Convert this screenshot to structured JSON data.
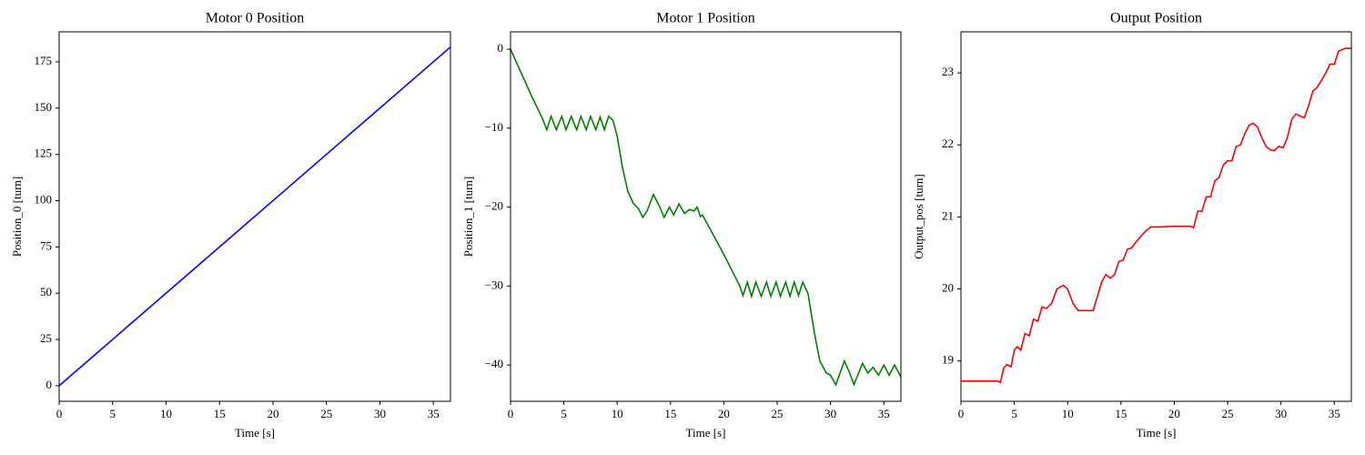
{
  "chart_data": [
    {
      "type": "line",
      "title": "Motor 0 Position",
      "x_label": "Time [s]",
      "y_label": "Position_0 [turn]",
      "color": "#0000ff",
      "x": [
        0,
        36.6
      ],
      "values": [
        0,
        183
      ],
      "xlim": [
        0,
        36.6
      ],
      "ylim": [
        -8.4,
        191.2
      ],
      "xticks": [
        0,
        5,
        10,
        15,
        20,
        25,
        30,
        35
      ],
      "yticks": [
        0,
        25,
        50,
        75,
        100,
        125,
        150,
        175
      ]
    },
    {
      "type": "line",
      "title": "Motor 1 Position",
      "x_label": "Time [s]",
      "y_label": "Position_1 [turn]",
      "color": "#008000",
      "x": [
        0,
        1,
        2,
        3,
        3.4,
        3.8,
        4.3,
        4.8,
        5.2,
        5.7,
        6.2,
        6.6,
        7.1,
        7.5,
        8.0,
        8.4,
        8.8,
        9.2,
        9.6,
        10.0,
        10.5,
        11,
        11.5,
        12,
        12.4,
        12.8,
        13.4,
        14,
        14.4,
        14.9,
        15.3,
        15.8,
        16.3,
        16.8,
        17.2,
        17.5,
        17.8,
        18,
        20,
        21.5,
        21.8,
        22.2,
        22.6,
        23,
        23.5,
        24,
        24.4,
        24.9,
        25.3,
        25.8,
        26.2,
        26.6,
        27,
        27.4,
        27.9,
        28.5,
        29,
        29.6,
        30,
        30.5,
        31.3,
        31.8,
        32.2,
        33,
        33.5,
        34,
        34.5,
        35,
        35.5,
        36,
        36.6
      ],
      "values": [
        0,
        -3,
        -6,
        -8.8,
        -10.2,
        -8.5,
        -10.2,
        -8.5,
        -10.2,
        -8.5,
        -10.2,
        -8.5,
        -10.2,
        -8.5,
        -10.2,
        -8.6,
        -10.2,
        -8.5,
        -9,
        -11,
        -15,
        -18,
        -19.5,
        -20.2,
        -21.3,
        -20.5,
        -18.4,
        -20,
        -21.3,
        -20,
        -21,
        -19.6,
        -20.8,
        -20.3,
        -20.5,
        -20,
        -21.2,
        -21,
        -26,
        -30,
        -31.2,
        -29.5,
        -31.3,
        -29.5,
        -31.3,
        -29.5,
        -31.3,
        -29.5,
        -31.3,
        -29.5,
        -31.3,
        -29.5,
        -31.2,
        -29.5,
        -31,
        -36,
        -39.5,
        -41,
        -41.3,
        -42.5,
        -39.5,
        -41,
        -42.5,
        -39.8,
        -41,
        -40.3,
        -41.3,
        -40,
        -41.3,
        -40,
        -41.5
      ],
      "xlim": [
        0,
        36.6
      ],
      "ylim": [
        -44.6,
        2.2
      ],
      "xticks": [
        0,
        5,
        10,
        15,
        20,
        25,
        30,
        35
      ],
      "yticks": [
        0,
        {
          "value": -10,
          "label": "−10"
        },
        {
          "value": -20,
          "label": "−20"
        },
        {
          "value": -30,
          "label": "−30"
        },
        {
          "value": -40,
          "label": "−40"
        }
      ]
    },
    {
      "type": "line",
      "title": "Output Position",
      "x_label": "Time [s]",
      "y_label": "Output_pos [turn]",
      "color": "#ff0000",
      "x": [
        0,
        3.5,
        3.7,
        4,
        4.3,
        4.7,
        5,
        5.3,
        5.6,
        6,
        6.4,
        6.8,
        7.2,
        7.6,
        8,
        8.5,
        9,
        9.6,
        10,
        10.5,
        11,
        11.5,
        12,
        12.4,
        12.8,
        13.2,
        13.6,
        14,
        14.4,
        14.8,
        15.2,
        15.6,
        16,
        16.4,
        16.8,
        17.3,
        17.8,
        18.5,
        20,
        21.5,
        21.8,
        22.2,
        22.6,
        23,
        23.4,
        23.8,
        24.2,
        24.6,
        25,
        25.4,
        25.8,
        26.2,
        26.6,
        27,
        27.4,
        27.8,
        28.2,
        28.6,
        29,
        29.4,
        29.8,
        30.2,
        30.6,
        31,
        31.4,
        31.8,
        32.2,
        32.6,
        33,
        33.4,
        33.8,
        34.2,
        34.6,
        35,
        35.4,
        36,
        36.6
      ],
      "values": [
        18.72,
        18.72,
        18.7,
        18.9,
        18.95,
        18.92,
        19.15,
        19.2,
        19.15,
        19.38,
        19.35,
        19.58,
        19.55,
        19.75,
        19.73,
        19.8,
        20,
        20.05,
        20,
        19.8,
        19.7,
        19.7,
        19.7,
        19.7,
        19.9,
        20.1,
        20.2,
        20.15,
        20.2,
        20.38,
        20.4,
        20.55,
        20.57,
        20.65,
        20.72,
        20.8,
        20.86,
        20.86,
        20.87,
        20.87,
        20.85,
        21.08,
        21.08,
        21.28,
        21.28,
        21.5,
        21.55,
        21.72,
        21.78,
        21.78,
        21.98,
        22,
        22.15,
        22.27,
        22.3,
        22.25,
        22.1,
        21.98,
        21.93,
        21.92,
        21.98,
        21.96,
        22.1,
        22.35,
        22.43,
        22.4,
        22.38,
        22.55,
        22.75,
        22.8,
        22.9,
        23.0,
        23.12,
        23.12,
        23.3,
        23.34,
        23.34
      ],
      "xlim": [
        0,
        36.6
      ],
      "ylim": [
        18.44,
        23.57
      ],
      "xticks": [
        0,
        5,
        10,
        15,
        20,
        25,
        30,
        35
      ],
      "yticks": [
        19,
        20,
        21,
        22,
        23
      ]
    }
  ]
}
